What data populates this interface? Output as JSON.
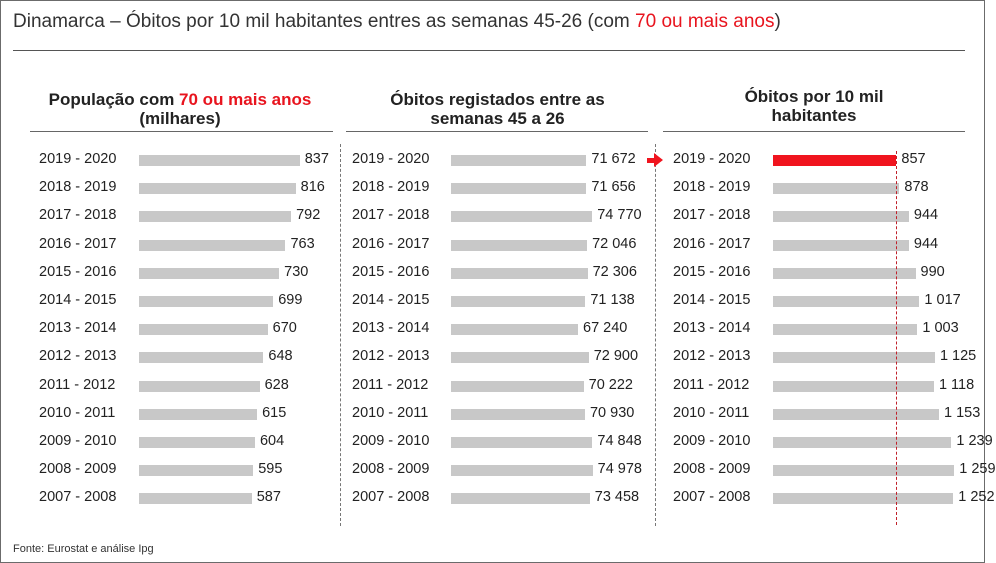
{
  "title": {
    "prefix": "Dinamarca – Óbitos por 10 mil habitantes entres as semanas 45-26 (com ",
    "highlight": "70 ou mais anos",
    "suffix": ")"
  },
  "source": "Fonte: Eurostat e análise Ipg",
  "colors": {
    "bar": "#c8c8c8",
    "highlight": "#f0141e",
    "accent_text": "#e8141e"
  },
  "chart_data": [
    {
      "type": "bar",
      "title_line1_prefix": "População com ",
      "title_line1_highlight": "70 ou mais anos",
      "title_line2": "(milhares)",
      "categories": [
        "2019 - 2020",
        "2018 - 2019",
        "2017 - 2018",
        "2016 - 2017",
        "2015 - 2016",
        "2014 - 2015",
        "2013 - 2014",
        "2012 - 2013",
        "2011 - 2012",
        "2010 - 2011",
        "2009 - 2010",
        "2008 - 2009",
        "2007 - 2008"
      ],
      "values": [
        837,
        816,
        792,
        763,
        730,
        699,
        670,
        648,
        628,
        615,
        604,
        595,
        587
      ],
      "value_labels": [
        "837",
        "816",
        "792",
        "763",
        "730",
        "699",
        "670",
        "648",
        "628",
        "615",
        "604",
        "595",
        "587"
      ],
      "xlim": [
        0,
        1000
      ]
    },
    {
      "type": "bar",
      "title_line1": "Óbitos registados entre as",
      "title_line2": "semanas 45 a 26",
      "categories": [
        "2019 - 2020",
        "2018 - 2019",
        "2017 - 2018",
        "2016 - 2017",
        "2015 - 2016",
        "2014 - 2015",
        "2013 - 2014",
        "2012 - 2013",
        "2011 - 2012",
        "2010 - 2011",
        "2009 - 2010",
        "2008 - 2009",
        "2007 - 2008"
      ],
      "values": [
        71672,
        71656,
        74770,
        72046,
        72306,
        71138,
        67240,
        72900,
        70222,
        70930,
        74848,
        74978,
        73458
      ],
      "value_labels": [
        "71 672",
        "71 656",
        "74 770",
        "72 046",
        "72 306",
        "71 138",
        "67 240",
        "72 900",
        "70 222",
        "70 930",
        "74 848",
        "74 978",
        "73 458"
      ],
      "xlim": [
        0,
        90000
      ]
    },
    {
      "type": "bar",
      "title_line1": "Óbitos por 10 mil",
      "title_line2": "habitantes",
      "categories": [
        "2019 - 2020",
        "2018 - 2019",
        "2017 - 2018",
        "2016 - 2017",
        "2015 - 2016",
        "2014 - 2015",
        "2013 - 2014",
        "2012 - 2013",
        "2011 - 2012",
        "2010 - 2011",
        "2009 - 2010",
        "2008 - 2009",
        "2007 - 2008"
      ],
      "values": [
        857,
        878,
        944,
        944,
        990,
        1017,
        1003,
        1125,
        1118,
        1153,
        1239,
        1259,
        1252
      ],
      "value_labels": [
        "857",
        "878",
        "944",
        "944",
        "990",
        "1 017",
        "1 003",
        "1 125",
        "1 118",
        "1 153",
        "1 239",
        "1 259",
        "1 252"
      ],
      "highlight_index": 0,
      "reference_value": 857,
      "xlim": [
        0,
        1285
      ]
    }
  ]
}
